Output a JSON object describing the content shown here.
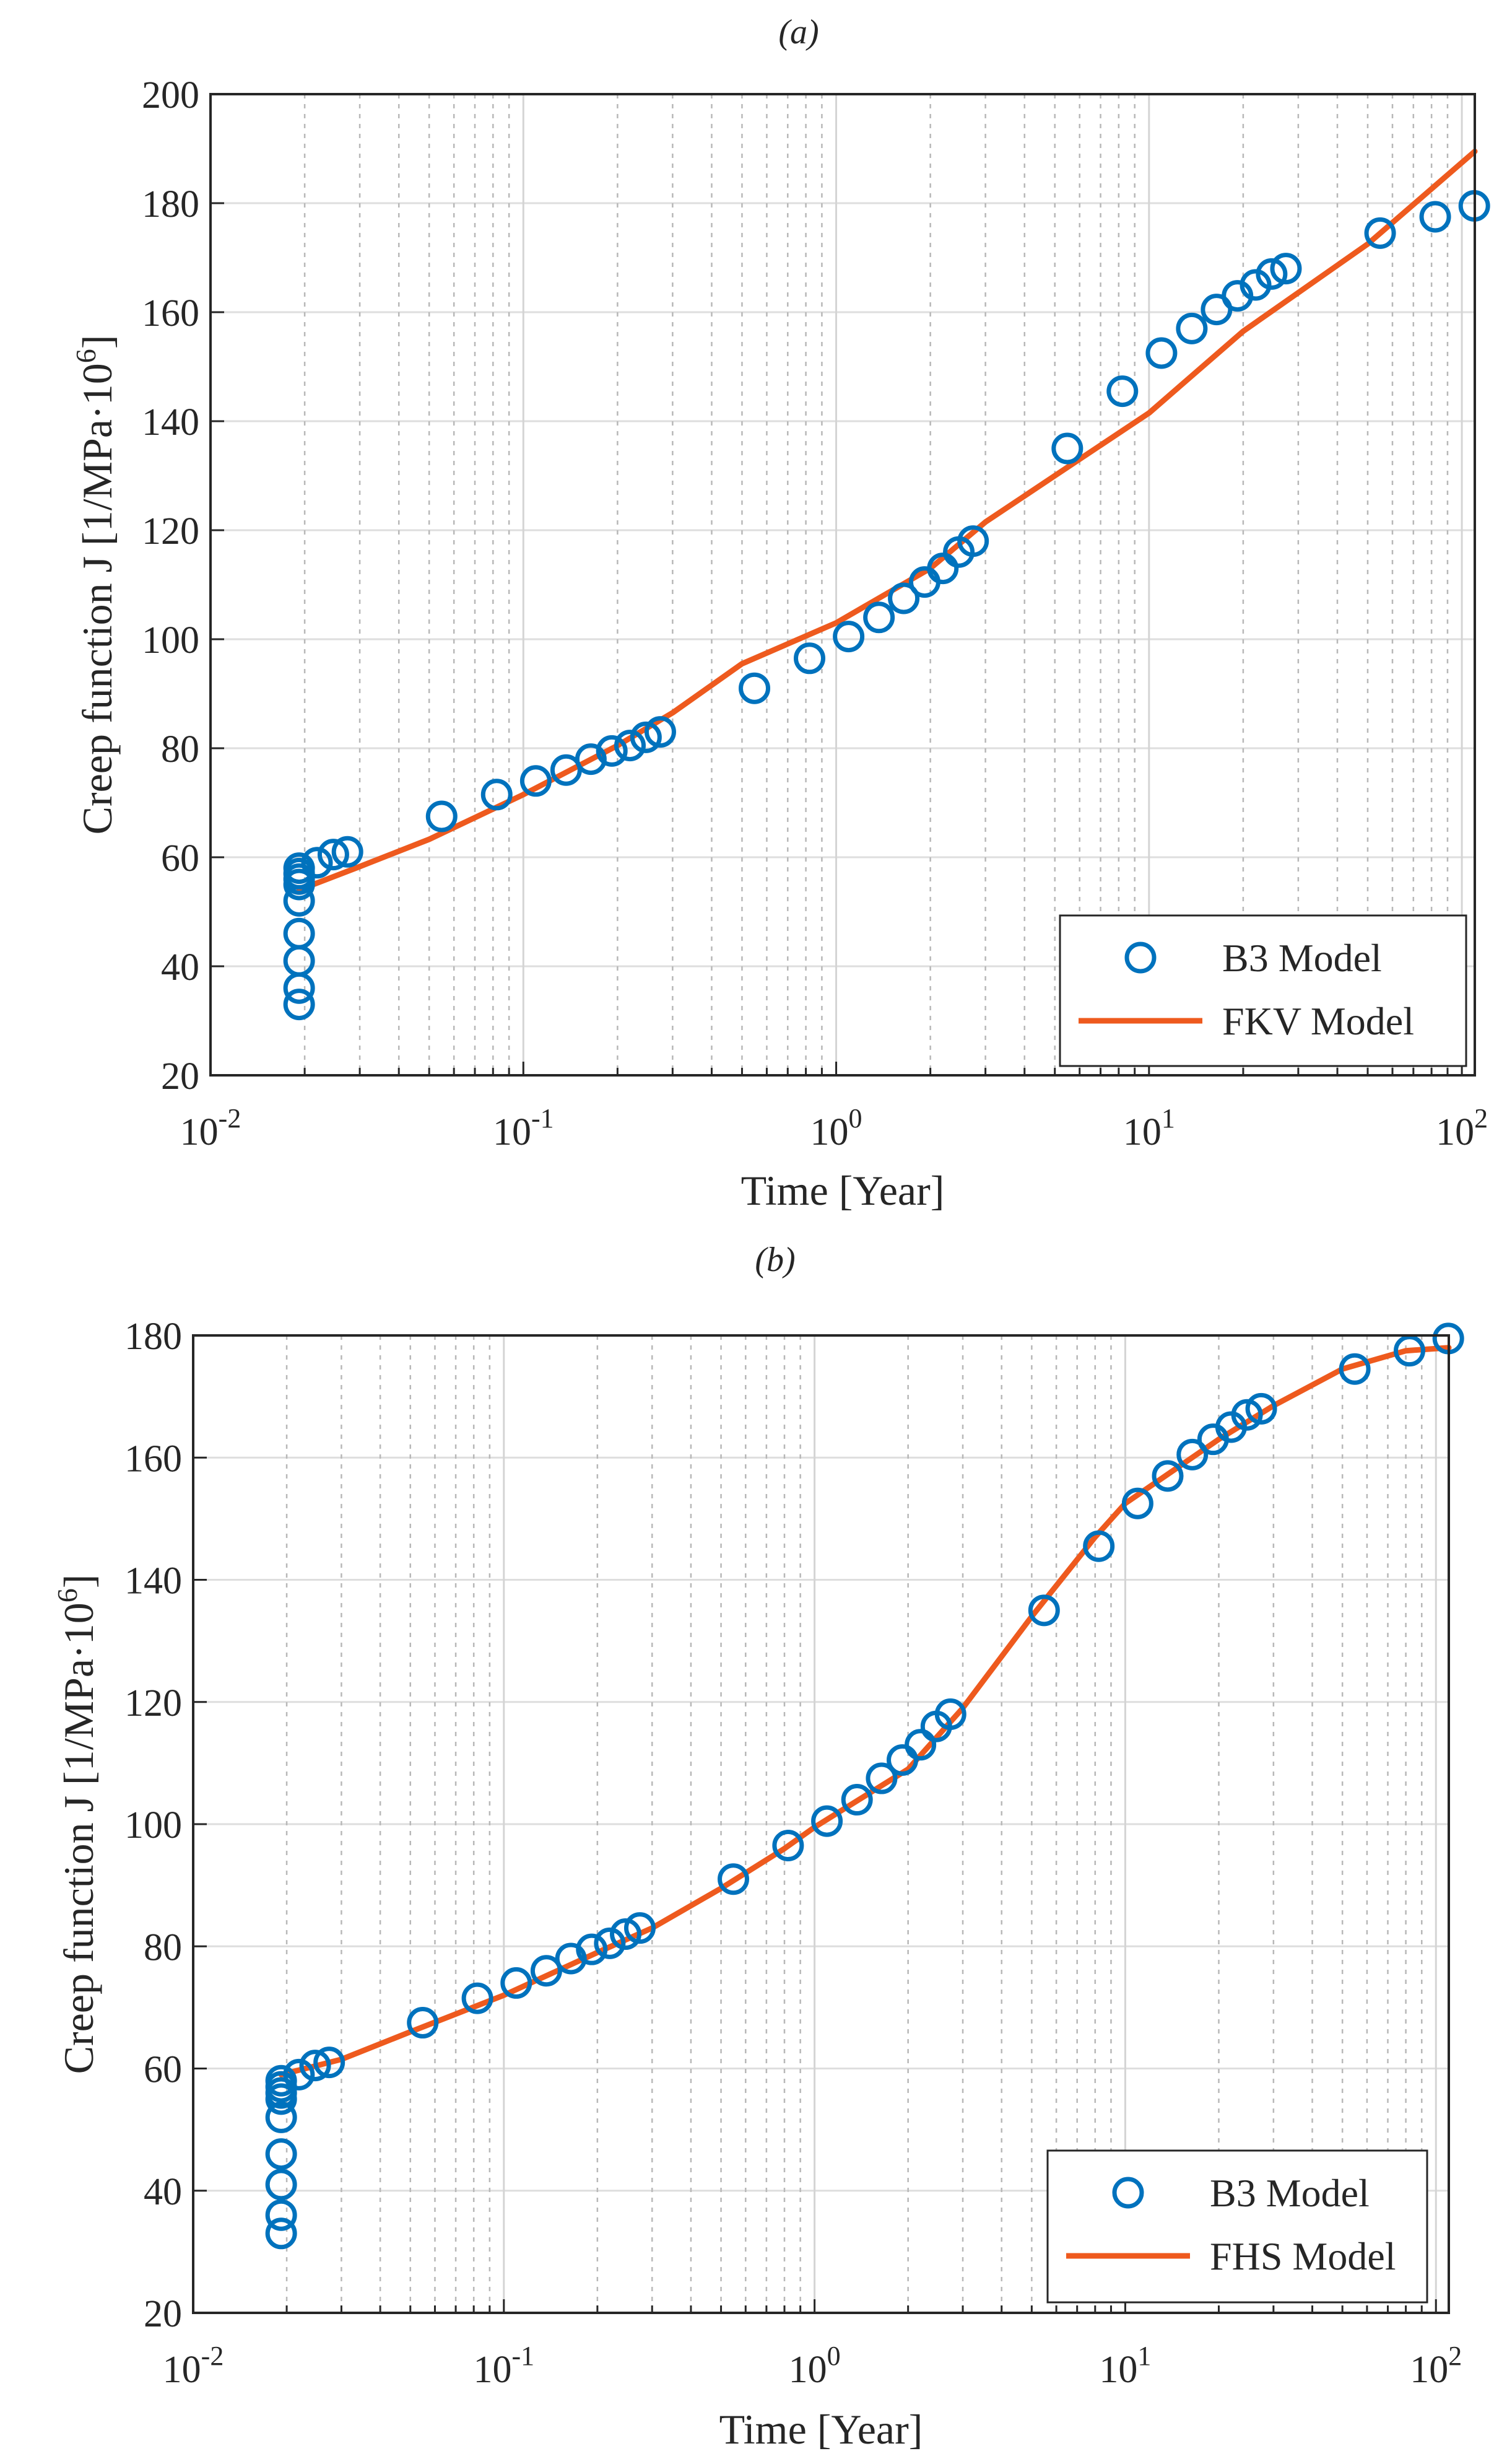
{
  "chart_data": [
    {
      "type": "scatter+line",
      "panel_label": "(a)",
      "xlabel": "Time [Year]",
      "ylabel": "Creep function J [1/MPa·10",
      "ylabel_sup": "6",
      "ylabel_close": "]",
      "xscale": "log",
      "xlim": [
        0.01,
        110
      ],
      "ylim": [
        20,
        200
      ],
      "yticks": [
        20,
        40,
        60,
        80,
        100,
        120,
        140,
        160,
        180,
        200
      ],
      "xticks": [
        {
          "base": "10",
          "exp": "-2"
        },
        {
          "base": "10",
          "exp": "-1"
        },
        {
          "base": "10",
          "exp": "0"
        },
        {
          "base": "10",
          "exp": "1"
        },
        {
          "base": "10",
          "exp": "2"
        }
      ],
      "grid": true,
      "legend": "bottom-right",
      "series": [
        {
          "name": "B3 Model",
          "kind": "markers",
          "marker": "circle",
          "color": "#0072BD",
          "x": [
            0.0192,
            0.0192,
            0.0192,
            0.0192,
            0.0192,
            0.0192,
            0.0192,
            0.0192,
            0.0192,
            0.0219,
            0.0247,
            0.0274,
            0.0548,
            0.0822,
            0.1096,
            0.137,
            0.1644,
            0.1918,
            0.2192,
            0.2466,
            0.274,
            0.5479,
            0.8219,
            1.0959,
            1.3699,
            1.6438,
            1.9178,
            2.1918,
            2.4658,
            2.7397,
            5.4795,
            8.2192,
            10.959,
            13.699,
            16.438,
            19.178,
            21.918,
            24.658,
            27.397,
            54.795,
            82.192,
            109.59
          ],
          "y": [
            33,
            36,
            41,
            46,
            52,
            55,
            56,
            57,
            58,
            59,
            60.5,
            61,
            67.5,
            71.5,
            74,
            76,
            78,
            79.5,
            80.5,
            82,
            83,
            91,
            96.5,
            100.5,
            104,
            107.5,
            110.5,
            113,
            116,
            118,
            135,
            145.5,
            152.5,
            157,
            160.5,
            163,
            165,
            167,
            168,
            174.5,
            177.5,
            179.5
          ]
        },
        {
          "name": "FKV Model",
          "kind": "line",
          "color": "#EE5A1E",
          "x": [
            0.0192,
            0.03,
            0.05,
            0.1,
            0.2,
            0.3,
            0.5,
            1,
            2,
            3,
            5,
            10,
            20,
            50,
            110
          ],
          "y": [
            54,
            58.3,
            63.3,
            71.5,
            80.5,
            86.5,
            95.5,
            103,
            113,
            121.5,
            130,
            141.5,
            156.5,
            172.5,
            189.5
          ]
        }
      ]
    },
    {
      "type": "scatter+line",
      "panel_label": "(b)",
      "xlabel": "Time [Year]",
      "ylabel": "Creep function J [1/MPa·10",
      "ylabel_sup": "6",
      "ylabel_close": "]",
      "xscale": "log",
      "xlim": [
        0.01,
        110
      ],
      "ylim": [
        20,
        180
      ],
      "yticks": [
        20,
        40,
        60,
        80,
        100,
        120,
        140,
        160,
        180
      ],
      "xticks": [
        {
          "base": "10",
          "exp": "-2"
        },
        {
          "base": "10",
          "exp": "-1"
        },
        {
          "base": "10",
          "exp": "0"
        },
        {
          "base": "10",
          "exp": "1"
        },
        {
          "base": "10",
          "exp": "2"
        }
      ],
      "grid": true,
      "legend": "bottom-right",
      "series": [
        {
          "name": "B3 Model",
          "kind": "markers",
          "marker": "circle",
          "color": "#0072BD",
          "x": [
            0.0192,
            0.0192,
            0.0192,
            0.0192,
            0.0192,
            0.0192,
            0.0192,
            0.0192,
            0.0192,
            0.0219,
            0.0247,
            0.0274,
            0.0548,
            0.0822,
            0.1096,
            0.137,
            0.1644,
            0.1918,
            0.2192,
            0.2466,
            0.274,
            0.5479,
            0.8219,
            1.0959,
            1.3699,
            1.6438,
            1.9178,
            2.1918,
            2.4658,
            2.7397,
            5.4795,
            8.2192,
            10.959,
            13.699,
            16.438,
            19.178,
            21.918,
            24.658,
            27.397,
            54.795,
            82.192,
            109.59
          ],
          "y": [
            33,
            36,
            41,
            46,
            52,
            55,
            56,
            57,
            58,
            59,
            60.5,
            61,
            67.5,
            71.5,
            74,
            76,
            78,
            79.5,
            80.5,
            82,
            83,
            91,
            96.5,
            100.5,
            104,
            107.5,
            110.5,
            113,
            116,
            118,
            135,
            145.5,
            152.5,
            157,
            160.5,
            163,
            165,
            167,
            168,
            174.5,
            177.5,
            179.5
          ]
        },
        {
          "name": "FHS Model",
          "kind": "line",
          "color": "#EE5A1E",
          "x": [
            0.0192,
            0.03,
            0.05,
            0.1,
            0.2,
            0.3,
            0.5,
            0.8,
            1,
            2,
            3,
            5,
            8,
            10,
            20,
            30,
            50,
            80,
            110
          ],
          "y": [
            59,
            61.5,
            66,
            72,
            79,
            83,
            89.5,
            96,
            99.5,
            109,
            119,
            134,
            147,
            152.5,
            163,
            168.5,
            174.5,
            177.5,
            178
          ]
        }
      ]
    }
  ]
}
